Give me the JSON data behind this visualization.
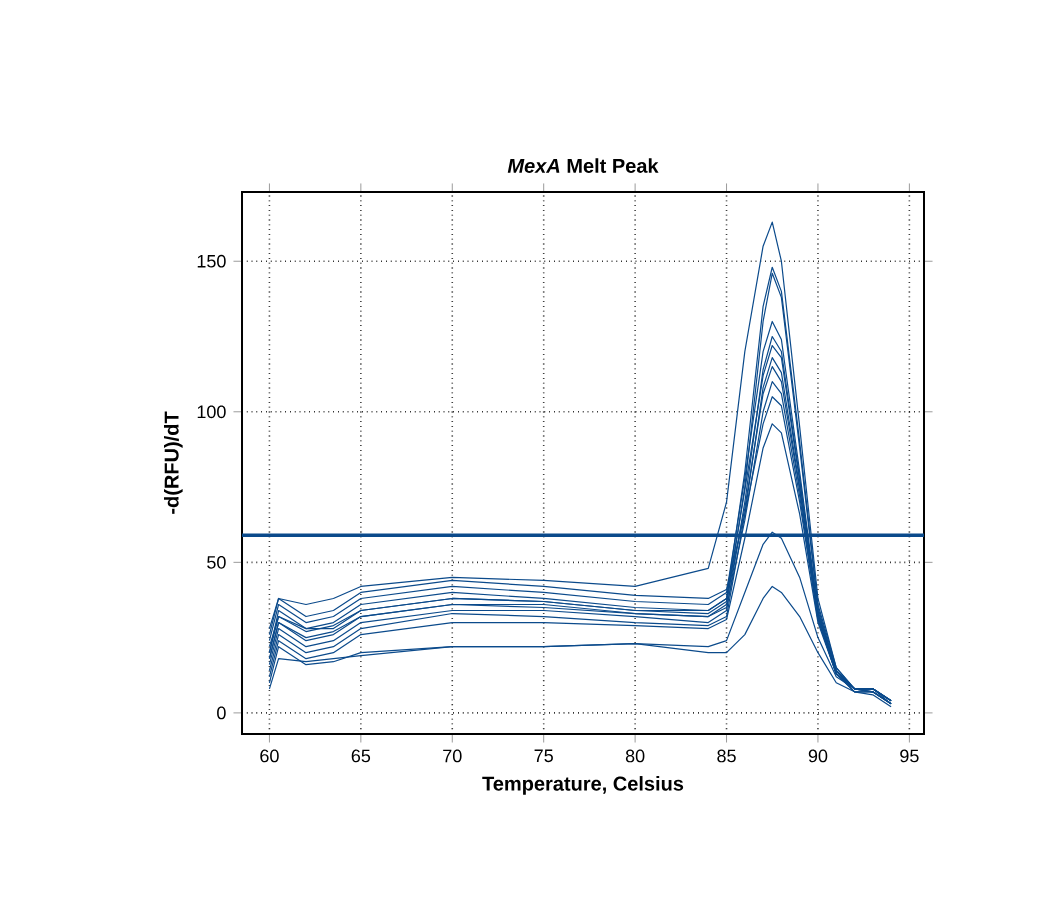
{
  "chart_data": {
    "type": "line",
    "title": "*MexA* Melt Peak",
    "xlabel": "Temperature, Celsius",
    "ylabel": "-d(RFU)/dT",
    "x": [
      60,
      60.5,
      62,
      63.5,
      65,
      70,
      75,
      80,
      84,
      85,
      86,
      87,
      87.5,
      88,
      89,
      90,
      91,
      92,
      93,
      94
    ],
    "series": [
      {
        "color": "#0b4a8b",
        "values": [
          28,
          38,
          36,
          38,
          42,
          45,
          44,
          42,
          48,
          70,
          120,
          155,
          163,
          150,
          95,
          38,
          15,
          8,
          8,
          3
        ]
      },
      {
        "color": "#0b4a8b",
        "values": [
          22,
          32,
          28,
          28,
          34,
          38,
          37,
          34,
          34,
          38,
          80,
          135,
          148,
          140,
          90,
          36,
          15,
          8,
          8,
          4
        ]
      },
      {
        "color": "#0b4a8b",
        "values": [
          18,
          30,
          24,
          26,
          32,
          36,
          36,
          33,
          32,
          36,
          75,
          130,
          146,
          138,
          88,
          35,
          14,
          8,
          8,
          4
        ]
      },
      {
        "color": "#0b4a8b",
        "values": [
          24,
          36,
          30,
          32,
          38,
          42,
          40,
          37,
          36,
          40,
          78,
          120,
          130,
          124,
          80,
          34,
          14,
          8,
          8,
          4
        ]
      },
      {
        "color": "#0b4a8b",
        "values": [
          16,
          28,
          22,
          24,
          30,
          34,
          34,
          32,
          30,
          34,
          70,
          114,
          125,
          120,
          78,
          33,
          14,
          8,
          7,
          3
        ]
      },
      {
        "color": "#0b4a8b",
        "values": [
          20,
          34,
          28,
          30,
          36,
          40,
          38,
          35,
          34,
          38,
          74,
          112,
          122,
          118,
          77,
          33,
          14,
          8,
          8,
          4
        ]
      },
      {
        "color": "#0b4a8b",
        "values": [
          14,
          26,
          20,
          22,
          28,
          33,
          32,
          30,
          29,
          32,
          66,
          108,
          118,
          113,
          75,
          32,
          13,
          8,
          7,
          3
        ]
      },
      {
        "color": "#0b4a8b",
        "values": [
          20,
          32,
          27,
          29,
          34,
          38,
          37,
          34,
          33,
          37,
          68,
          106,
          115,
          110,
          74,
          32,
          13,
          8,
          8,
          4
        ]
      },
      {
        "color": "#0b4a8b",
        "values": [
          18,
          30,
          25,
          27,
          32,
          36,
          35,
          33,
          32,
          35,
          64,
          100,
          110,
          106,
          72,
          31,
          13,
          7,
          7,
          3
        ]
      },
      {
        "color": "#0b4a8b",
        "values": [
          26,
          38,
          32,
          34,
          40,
          44,
          42,
          39,
          38,
          41,
          66,
          96,
          105,
          102,
          70,
          31,
          13,
          8,
          8,
          4
        ]
      },
      {
        "color": "#0b4a8b",
        "values": [
          12,
          24,
          18,
          20,
          26,
          30,
          30,
          29,
          28,
          31,
          58,
          88,
          96,
          93,
          66,
          30,
          13,
          7,
          7,
          3
        ]
      },
      {
        "color": "#0b4a8b",
        "values": [
          10,
          22,
          16,
          17,
          20,
          22,
          22,
          23,
          22,
          24,
          40,
          56,
          60,
          58,
          45,
          25,
          12,
          8,
          7,
          3
        ]
      },
      {
        "color": "#0b4a8b",
        "values": [
          8,
          18,
          17,
          18,
          19,
          22,
          22,
          23,
          20,
          20,
          26,
          38,
          42,
          40,
          32,
          20,
          10,
          7,
          6,
          2
        ]
      }
    ],
    "ref_lines": [
      {
        "axis": "y",
        "value": 59,
        "color": "#0b4a8b"
      }
    ],
    "xlim": [
      58.5,
      95.8
    ],
    "ylim": [
      -7,
      173
    ],
    "xticks": [
      60,
      65,
      70,
      75,
      80,
      85,
      90,
      95
    ],
    "yticks": [
      0,
      50,
      100,
      150
    ],
    "grid": true,
    "marker": "none",
    "line_style": "solid"
  }
}
